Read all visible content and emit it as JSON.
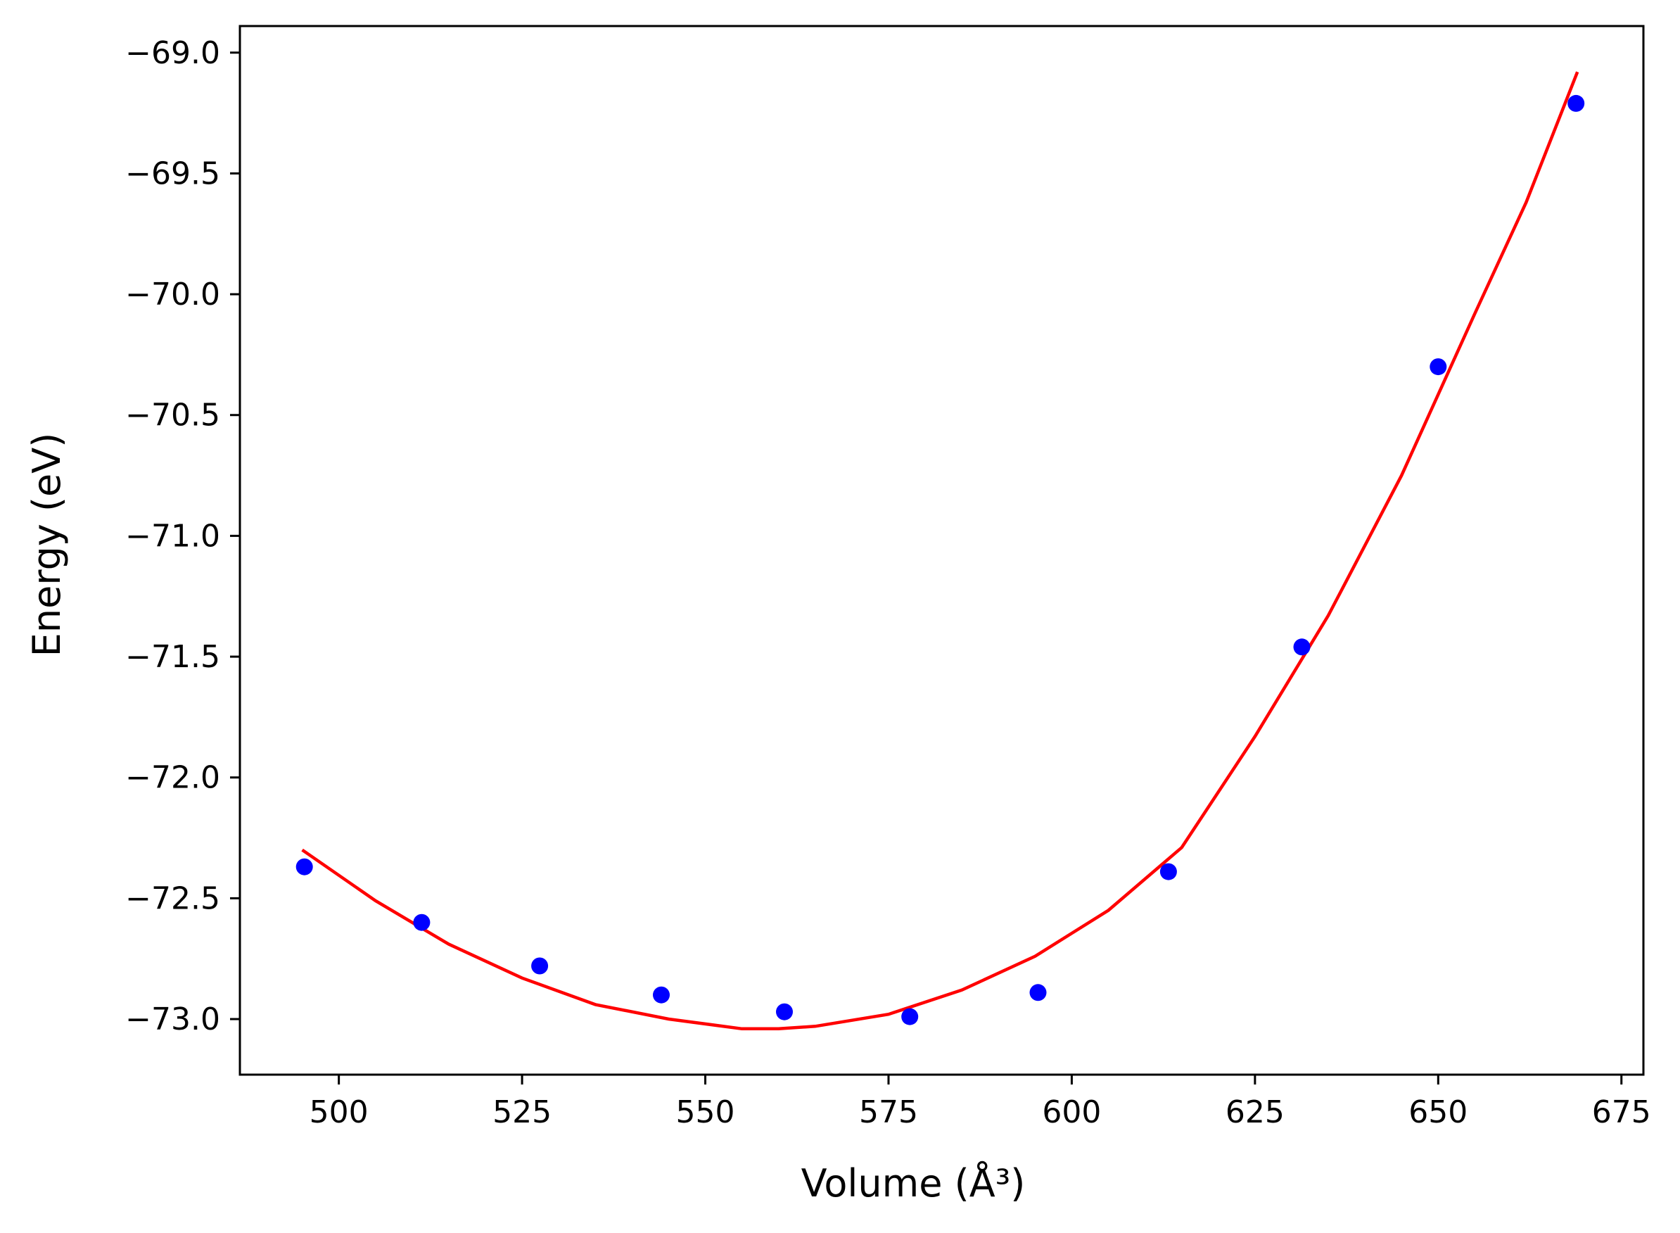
{
  "chart_data": {
    "type": "scatter",
    "xlabel": "Volume (Å³)",
    "ylabel": "Energy (eV)",
    "xlim": [
      486.5,
      678
    ],
    "ylim": [
      -73.23,
      -68.89
    ],
    "x_ticks": [
      500,
      525,
      550,
      575,
      600,
      625,
      650,
      675
    ],
    "y_ticks": [
      -69.0,
      -69.5,
      -70.0,
      -70.5,
      -71.0,
      -71.5,
      -72.0,
      -72.5,
      -73.0
    ],
    "x_tick_labels": [
      "500",
      "525",
      "550",
      "575",
      "600",
      "625",
      "650",
      "675"
    ],
    "y_tick_labels": [
      "−69.0",
      "−69.5",
      "−70.0",
      "−70.5",
      "−71.0",
      "−71.5",
      "−72.0",
      "−72.5",
      "−73.0"
    ],
    "grid": false,
    "series": [
      {
        "kind": "scatter",
        "color": "#0000ff",
        "points": [
          [
            495.3,
            -72.37
          ],
          [
            511.3,
            -72.6
          ],
          [
            527.4,
            -72.78
          ],
          [
            544.0,
            -72.9
          ],
          [
            560.8,
            -72.97
          ],
          [
            577.9,
            -72.99
          ],
          [
            595.4,
            -72.89
          ],
          [
            613.2,
            -72.39
          ],
          [
            631.4,
            -71.46
          ],
          [
            650.0,
            -70.3
          ],
          [
            668.8,
            -69.21
          ]
        ]
      },
      {
        "kind": "line",
        "color": "#ff0000",
        "points": [
          [
            495.0,
            -72.3
          ],
          [
            505.0,
            -72.51
          ],
          [
            515.0,
            -72.69
          ],
          [
            525.0,
            -72.83
          ],
          [
            535.0,
            -72.94
          ],
          [
            545.0,
            -73.0
          ],
          [
            555.0,
            -73.04
          ],
          [
            560.0,
            -73.04
          ],
          [
            565.0,
            -73.03
          ],
          [
            575.0,
            -72.98
          ],
          [
            585.0,
            -72.88
          ],
          [
            595.0,
            -72.74
          ],
          [
            605.0,
            -72.55
          ],
          [
            615.0,
            -72.29
          ],
          [
            625.0,
            -71.83
          ],
          [
            635.0,
            -71.33
          ],
          [
            645.0,
            -70.75
          ],
          [
            655.0,
            -70.08
          ],
          [
            662.0,
            -69.62
          ],
          [
            669.0,
            -69.08
          ]
        ]
      }
    ]
  }
}
